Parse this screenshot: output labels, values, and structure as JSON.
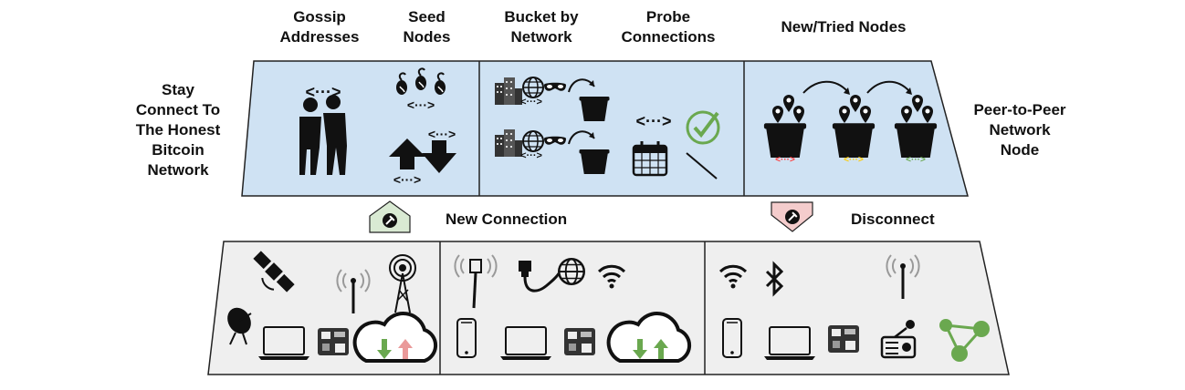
{
  "header_labels": {
    "gossip": "Gossip\nAddresses",
    "seed": "Seed\nNodes",
    "bucket": "Bucket by\nNetwork",
    "probe": "Probe\nConnections",
    "newtried": "New/Tried Nodes"
  },
  "side_labels": {
    "left": "Stay\nConnect To\nThe Honest\nBitcoin\nNetwork",
    "right": "Peer-to-Peer\nNetwork\nNode"
  },
  "arrow_labels": {
    "new_connection": "New Connection",
    "disconnect": "Disconnect"
  },
  "icon_text": {
    "gossip_bracket": "<···>",
    "probe_bracket": "<···>",
    "bucket_tag_red": "<···>",
    "bucket_tag_yellow": "<···>",
    "bucket_tag_green": "<···>"
  },
  "colors": {
    "top_panel_fill": "#cfe2f3",
    "bottom_panel_fill": "#efefef",
    "new_connection_arrow": "#d9ead3",
    "disconnect_arrow": "#f4cccc",
    "check_green": "#6aa84f",
    "tag_red": "#ff3b3b",
    "tag_yellow": "#ffcc00",
    "tag_green": "#6aa84f",
    "upload_pink": "#ea9999",
    "download_green": "#6aa84f"
  },
  "icons": [
    "people-talking-icon",
    "seed-icon",
    "up-arrow-icon",
    "down-arrow-icon",
    "buildings-icon",
    "globe-icon",
    "mask-icon",
    "bucket-icon",
    "calendar-icon",
    "check-icon",
    "map-pin-icon",
    "satellite-icon",
    "antenna-icon",
    "tower-icon",
    "satellite-dish-icon",
    "laptop-icon",
    "board-icon",
    "cloud-icon",
    "ethernet-icon",
    "wifi-icon",
    "phone-icon",
    "bluetooth-icon",
    "radio-icon",
    "mesh-icon",
    "plug-icon"
  ]
}
